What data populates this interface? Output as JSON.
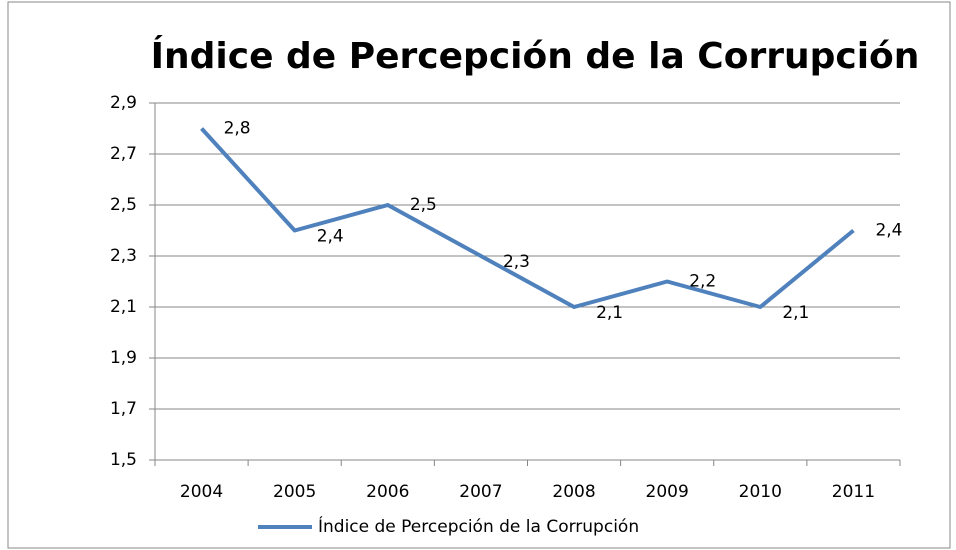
{
  "chart_data": {
    "type": "line",
    "title": "Índice de Percepción de la Corrupción",
    "categories": [
      "2004",
      "2005",
      "2006",
      "2007",
      "2008",
      "2009",
      "2010",
      "2011"
    ],
    "series": [
      {
        "name": "Índice de Percepción de la Corrupción",
        "color": "#4f81bd",
        "values": [
          2.8,
          2.4,
          2.5,
          2.3,
          2.1,
          2.2,
          2.1,
          2.4
        ],
        "value_labels": [
          "2,8",
          "2,4",
          "2,5",
          "2,3",
          "2,1",
          "2,2",
          "2,1",
          "2,4"
        ]
      }
    ],
    "ylim": [
      1.5,
      2.9
    ],
    "yticks": [
      {
        "value": 1.5,
        "label": "1,5"
      },
      {
        "value": 1.7,
        "label": "1,7"
      },
      {
        "value": 1.9,
        "label": "1,9"
      },
      {
        "value": 2.1,
        "label": "2,1"
      },
      {
        "value": 2.3,
        "label": "2,3"
      },
      {
        "value": 2.5,
        "label": "2,5"
      },
      {
        "value": 2.7,
        "label": "2,7"
      },
      {
        "value": 2.9,
        "label": "2,9"
      }
    ],
    "grid": true,
    "legend": "bottom"
  }
}
